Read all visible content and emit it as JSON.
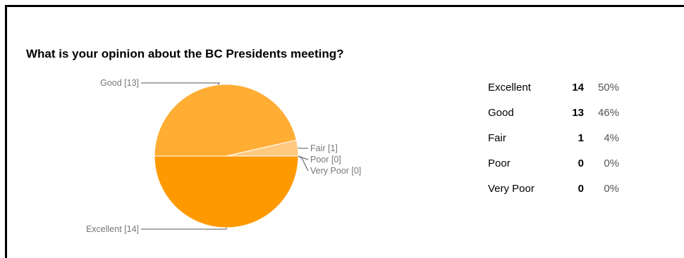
{
  "chart_data": {
    "type": "pie",
    "title": "What is your opinion about the BC Presidents meeting?",
    "categories": [
      "Excellent",
      "Good",
      "Fair",
      "Poor",
      "Very Poor"
    ],
    "values": [
      14,
      13,
      1,
      0,
      0
    ],
    "percentages": [
      "50%",
      "46%",
      "4%",
      "0%",
      "0%"
    ],
    "callout_labels": [
      "Excellent [14]",
      "Good [13]",
      "Fair [1]",
      "Poor [0]",
      "Very Poor [0]"
    ],
    "colors": [
      "#ff9900",
      "#ffad33",
      "#ffc980",
      "#ffdbaa",
      "#ffe7c6"
    ],
    "legend": "right"
  }
}
